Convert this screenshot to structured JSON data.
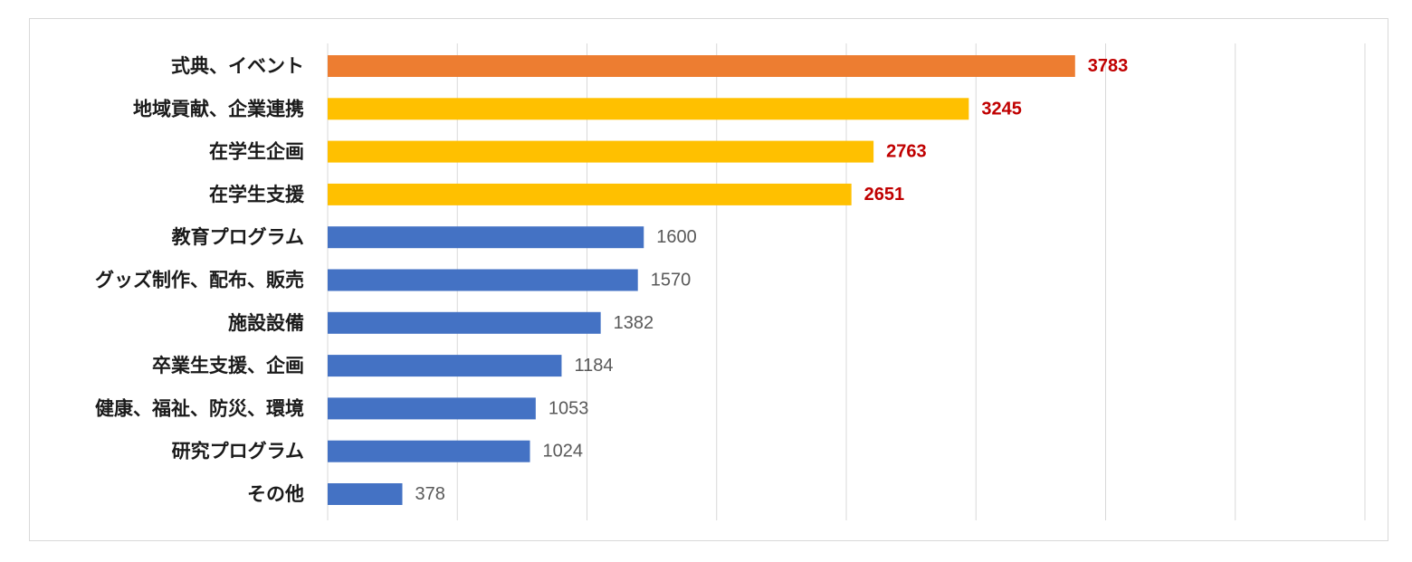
{
  "chart_data": {
    "type": "bar",
    "orientation": "horizontal",
    "categories": [
      "式典、イベント",
      "地域貢献、企業連携",
      "在学生企画",
      "在学生支援",
      "教育プログラム",
      "グッズ制作、配布、販売",
      "施設設備",
      "卒業生支援、企画",
      "健康、福祉、防災、環境",
      "研究プログラム",
      "その他"
    ],
    "values": [
      3783,
      3245,
      2763,
      2651,
      1600,
      1570,
      1382,
      1184,
      1053,
      1024,
      378
    ],
    "value_labels": [
      "3783",
      "3245",
      "2763",
      "2651",
      "1600",
      "1570",
      "1382",
      "1184",
      "1053",
      "1024",
      "378"
    ],
    "bar_colors": [
      "#ed7d31",
      "#ffc000",
      "#ffc000",
      "#ffc000",
      "#4472c4",
      "#4472c4",
      "#4472c4",
      "#4472c4",
      "#4472c4",
      "#4472c4",
      "#4472c4"
    ],
    "value_label_colors": [
      "#c00000",
      "#c00000",
      "#c00000",
      "#c00000",
      "#595959",
      "#595959",
      "#595959",
      "#595959",
      "#595959",
      "#595959",
      "#595959"
    ],
    "value_label_bold": [
      true,
      true,
      true,
      true,
      false,
      false,
      false,
      false,
      false,
      false,
      false
    ],
    "xlim": [
      0,
      5250
    ],
    "grid": true,
    "gridline_color": "#d9d9d9",
    "title": "",
    "xlabel": "",
    "ylabel": ""
  }
}
